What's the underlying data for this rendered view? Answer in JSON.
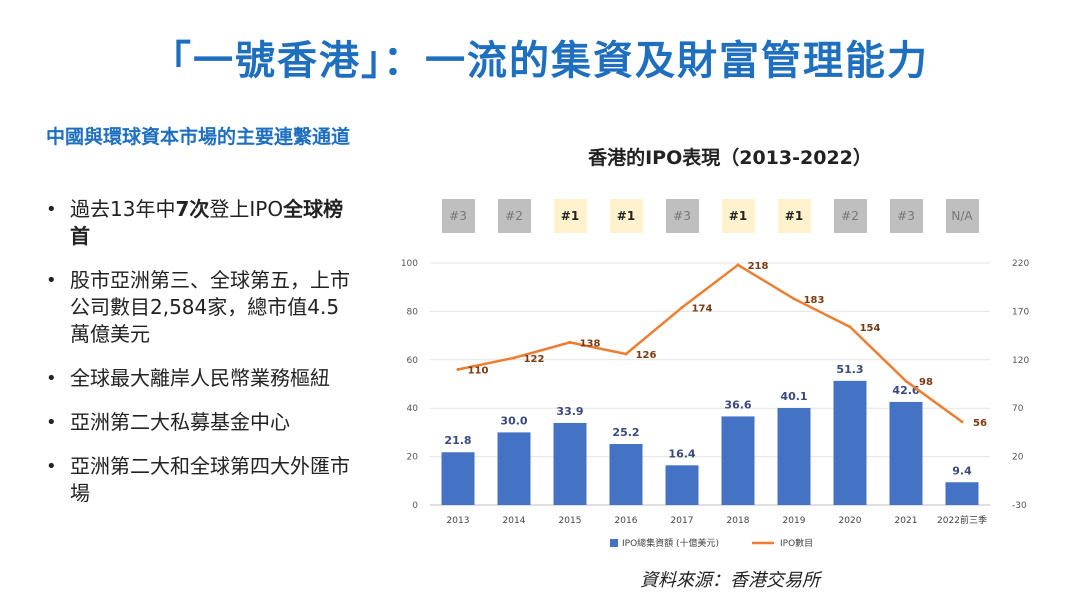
{
  "slide": {
    "title": "「一號香港」：一流的集資及財富管理能力"
  },
  "left_panel": {
    "heading": "中國與環球資本市場的主要連繫通道",
    "bullets": [
      {
        "parts": [
          {
            "text": "過去13年中",
            "bold": false
          },
          {
            "text": "7次",
            "bold": true
          },
          {
            "text": "登上IPO",
            "bold": false
          },
          {
            "text": "全球榜首",
            "bold": true
          }
        ]
      },
      {
        "parts": [
          {
            "text": "股市亞洲第三、全球第五，上市公司數目",
            "bold": false
          },
          {
            "text": "2,584",
            "bold": false
          },
          {
            "text": "家，總市值",
            "bold": false
          },
          {
            "text": "4.5",
            "bold": false
          },
          {
            "text": "萬億美元",
            "bold": false
          }
        ]
      },
      {
        "parts": [
          {
            "text": "全球最大離岸人民幣業務樞紐",
            "bold": false
          }
        ]
      },
      {
        "parts": [
          {
            "text": "亞洲第二大私募基金中心",
            "bold": false
          }
        ]
      },
      {
        "parts": [
          {
            "text": "亞洲第二大和全球第四大外匯市場",
            "bold": false
          }
        ]
      }
    ]
  },
  "source": "資料來源：香港交易所",
  "colors": {
    "bar": "#4472c4",
    "line": "#ed7d31",
    "rank_top_bg": "#fff2cc",
    "rank_other_bg": "#bfbfbf",
    "title": "#1f6fc0"
  },
  "chart_data": {
    "type": "bar",
    "title": "香港的IPO表現（2013-2022）",
    "categories": [
      "2013",
      "2014",
      "2015",
      "2016",
      "2017",
      "2018",
      "2019",
      "2020",
      "2021",
      "2022前三季"
    ],
    "ranks": [
      "#3",
      "#2",
      "#1",
      "#1",
      "#3",
      "#1",
      "#1",
      "#2",
      "#3",
      "N/A"
    ],
    "series": [
      {
        "name": "IPO總集資額 (十億美元)",
        "type": "bar",
        "axis": "left",
        "values": [
          21.8,
          30.0,
          33.9,
          25.2,
          16.4,
          36.6,
          40.1,
          51.3,
          42.6,
          9.4
        ],
        "labels": [
          "21.8",
          "30.0",
          "33.9",
          "25.2",
          "16.4",
          "36.6",
          "40.1",
          "51.3",
          "42.6",
          "9.4"
        ]
      },
      {
        "name": "IPO數目",
        "type": "line",
        "axis": "right",
        "values": [
          110,
          122,
          138,
          126,
          174,
          218,
          183,
          154,
          98,
          56
        ],
        "labels": [
          "110",
          "122",
          "138",
          "126",
          "174",
          "218",
          "183",
          "154",
          "98",
          "56"
        ]
      }
    ],
    "y_left": {
      "min": 0,
      "max": 100,
      "ticks": [
        "0",
        "20",
        "40",
        "60",
        "80",
        "100"
      ]
    },
    "y_right": {
      "min": -30,
      "max": 220,
      "ticks": [
        "-30",
        "20",
        "70",
        "120",
        "170",
        "220"
      ]
    },
    "grid": true,
    "legend": "bottom"
  }
}
